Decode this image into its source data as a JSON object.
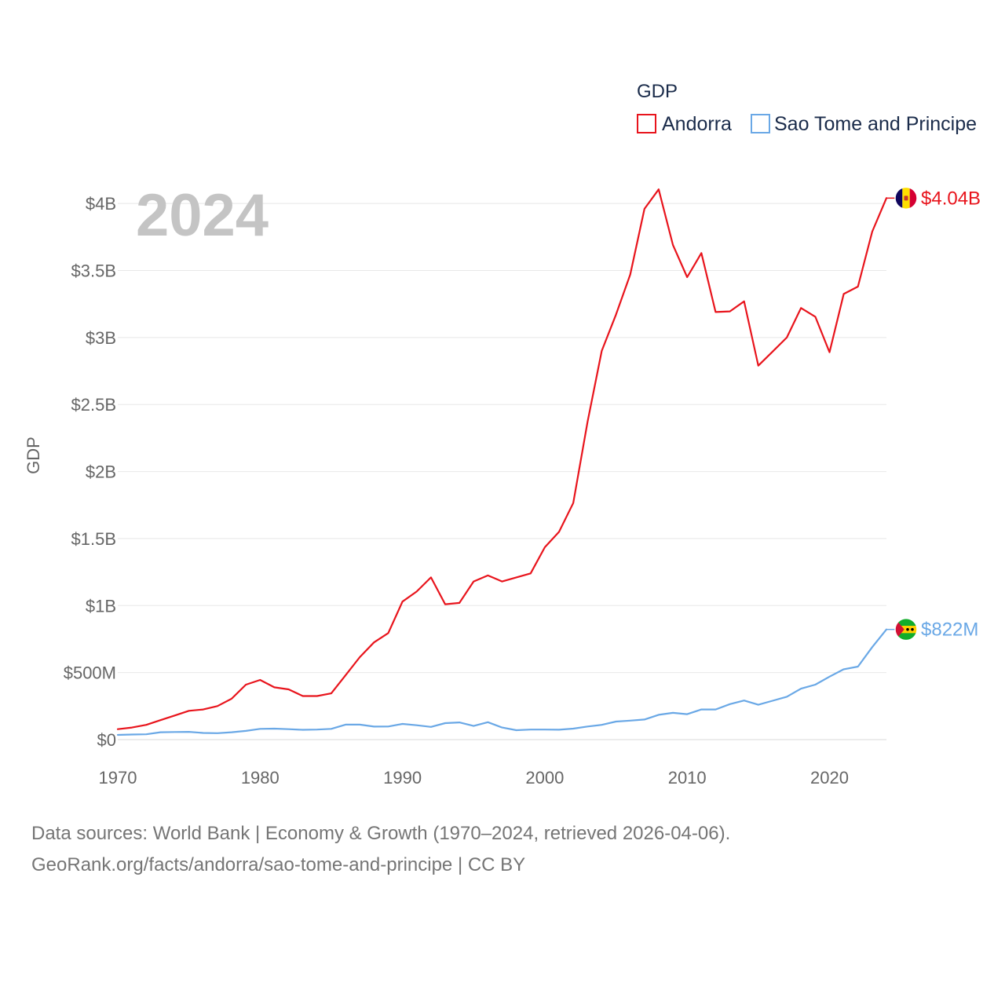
{
  "chart_data": {
    "type": "line",
    "title": "GDP",
    "year_label": "2024",
    "ylabel": "GDP",
    "xlabel": "",
    "xlim": [
      1970,
      2024
    ],
    "ylim": [
      0,
      4200000000
    ],
    "x_ticks": [
      1970,
      1980,
      1990,
      2000,
      2010,
      2020
    ],
    "y_ticks": [
      {
        "value": 0,
        "label": "$0"
      },
      {
        "value": 500000000,
        "label": "$500M"
      },
      {
        "value": 1000000000,
        "label": "$1B"
      },
      {
        "value": 1500000000,
        "label": "$1.5B"
      },
      {
        "value": 2000000000,
        "label": "$2B"
      },
      {
        "value": 2500000000,
        "label": "$2.5B"
      },
      {
        "value": 3000000000,
        "label": "$3B"
      },
      {
        "value": 3500000000,
        "label": "$3.5B"
      },
      {
        "value": 4000000000,
        "label": "$4B"
      }
    ],
    "grid": true,
    "legend": "top-right",
    "x": [
      1970,
      1971,
      1972,
      1973,
      1974,
      1975,
      1976,
      1977,
      1978,
      1979,
      1980,
      1981,
      1982,
      1983,
      1984,
      1985,
      1986,
      1987,
      1988,
      1989,
      1990,
      1991,
      1992,
      1993,
      1994,
      1995,
      1996,
      1997,
      1998,
      1999,
      2000,
      2001,
      2002,
      2003,
      2004,
      2005,
      2006,
      2007,
      2008,
      2009,
      2010,
      2011,
      2012,
      2013,
      2014,
      2015,
      2016,
      2017,
      2018,
      2019,
      2020,
      2021,
      2022,
      2023,
      2024
    ],
    "series": [
      {
        "name": "Andorra",
        "color": "#e8141c",
        "flag": "andorra-flag",
        "end_label": "$4.04B",
        "values": [
          78000000,
          90000000,
          110000000,
          145000000,
          180000000,
          215000000,
          225000000,
          250000000,
          305000000,
          410000000,
          445000000,
          390000000,
          375000000,
          325000000,
          325000000,
          345000000,
          480000000,
          615000000,
          725000000,
          795000000,
          1030000000,
          1105000000,
          1210000000,
          1010000000,
          1020000000,
          1180000000,
          1225000000,
          1180000000,
          1210000000,
          1240000000,
          1435000000,
          1550000000,
          1765000000,
          2370000000,
          2900000000,
          3170000000,
          3470000000,
          3960000000,
          4105000000,
          3690000000,
          3450000000,
          3630000000,
          3190000000,
          3195000000,
          3270000000,
          2790000000,
          2895000000,
          3000000000,
          3220000000,
          3155000000,
          2890000000,
          3325000000,
          3380000000,
          3790000000,
          4040000000
        ]
      },
      {
        "name": "Sao Tome and Principe",
        "color": "#6aa8e6",
        "flag": "sao-tome-and-principe-flag",
        "end_label": "$822M",
        "values": [
          35000000,
          38000000,
          40000000,
          55000000,
          57000000,
          58000000,
          50000000,
          48000000,
          55000000,
          65000000,
          80000000,
          82000000,
          78000000,
          73000000,
          75000000,
          80000000,
          112000000,
          112000000,
          97000000,
          98000000,
          117000000,
          107000000,
          95000000,
          123000000,
          128000000,
          102000000,
          130000000,
          90000000,
          70000000,
          75000000,
          75000000,
          74000000,
          82000000,
          98000000,
          110000000,
          135000000,
          142000000,
          150000000,
          185000000,
          200000000,
          190000000,
          225000000,
          225000000,
          265000000,
          292000000,
          260000000,
          290000000,
          320000000,
          380000000,
          410000000,
          470000000,
          525000000,
          545000000,
          690000000,
          822000000
        ]
      }
    ]
  },
  "source": {
    "line1": "Data sources: World Bank | Economy & Growth (1970–2024, retrieved 2026-04-06).",
    "line2": "GeoRank.org/facts/andorra/sao-tome-and-principe | CC BY"
  }
}
